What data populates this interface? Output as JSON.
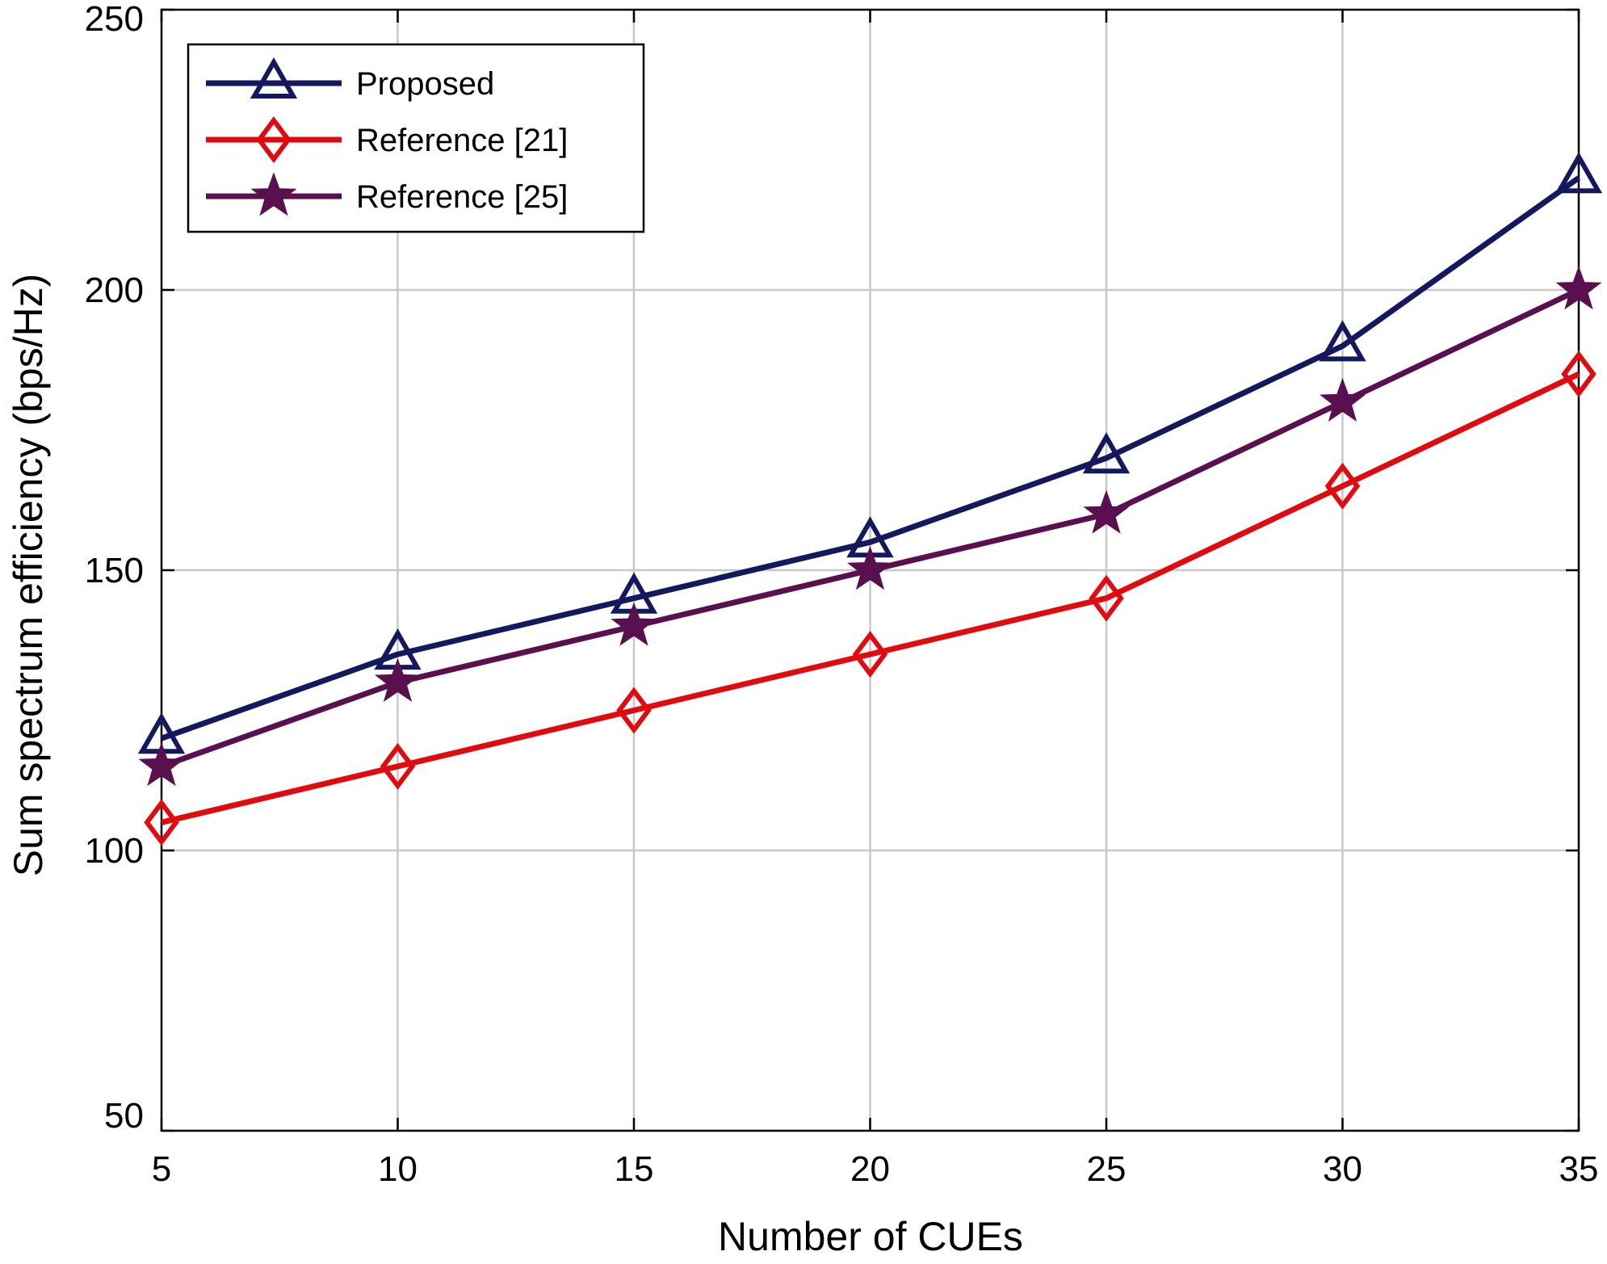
{
  "chart_data": {
    "type": "line",
    "title": "",
    "xlabel": "Number of CUEs",
    "ylabel": "Sum spectrum efficiency (bps/Hz)",
    "xlim": [
      5,
      35
    ],
    "ylim": [
      50,
      250
    ],
    "xticks": [
      5,
      10,
      15,
      20,
      25,
      30,
      35
    ],
    "yticks": [
      50,
      100,
      150,
      200,
      250
    ],
    "grid": true,
    "legend_position": "top-left",
    "x": [
      5,
      10,
      15,
      20,
      25,
      30,
      35
    ],
    "series": [
      {
        "name": "Proposed",
        "marker": "triangle",
        "color": "#14185e",
        "values": [
          120,
          135,
          145,
          155,
          170,
          190,
          220
        ]
      },
      {
        "name": "Reference [21]",
        "marker": "diamond",
        "color": "#e00a0f",
        "values": [
          105,
          115,
          125,
          135,
          145,
          165,
          185
        ]
      },
      {
        "name": "Reference [25]",
        "marker": "star",
        "color": "#5a0f4e",
        "values": [
          115,
          130,
          140,
          150,
          160,
          180,
          200
        ]
      }
    ]
  }
}
